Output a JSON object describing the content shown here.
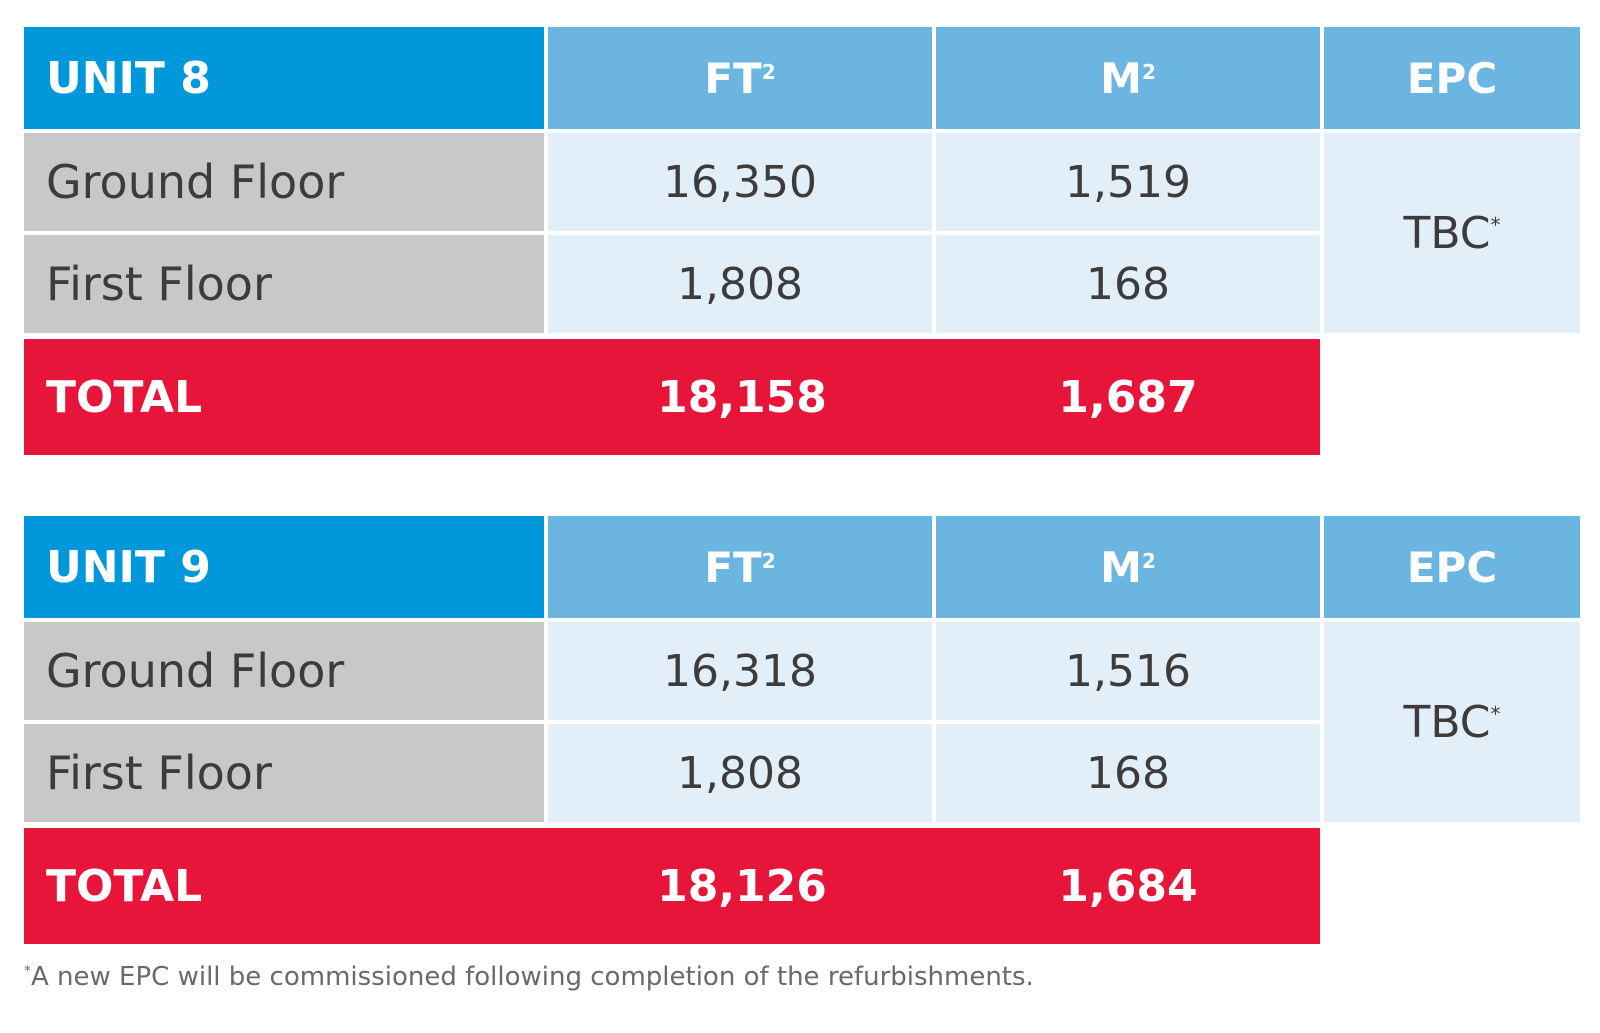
{
  "units": [
    {
      "name": "UNIT 8",
      "columns": {
        "ft": "FT",
        "m": "M",
        "sup": "2",
        "epc": "EPC"
      },
      "rows": [
        {
          "label": "Ground Floor",
          "ft": "16,350",
          "m": "1,519"
        },
        {
          "label": "First Floor",
          "ft": "1,808",
          "m": "168"
        }
      ],
      "epc_value": "TBC",
      "epc_mark": "*",
      "total": {
        "label": "TOTAL",
        "ft": "18,158",
        "m": "1,687"
      }
    },
    {
      "name": "UNIT 9",
      "columns": {
        "ft": "FT",
        "m": "M",
        "sup": "2",
        "epc": "EPC"
      },
      "rows": [
        {
          "label": "Ground Floor",
          "ft": "16,318",
          "m": "1,516"
        },
        {
          "label": "First Floor",
          "ft": "1,808",
          "m": "168"
        }
      ],
      "epc_value": "TBC",
      "epc_mark": "*",
      "total": {
        "label": "TOTAL",
        "ft": "18,126",
        "m": "1,684"
      }
    }
  ],
  "footnote": {
    "mark": "*",
    "text": "A new EPC will be commissioned following completion of the refurbishments."
  },
  "colors": {
    "unit_header": "#0098db",
    "column_header": "#6ab6e0",
    "row_label_bg": "#c6c8ca",
    "value_bg": "#e2eef8",
    "total_bg": "#e8153a"
  }
}
